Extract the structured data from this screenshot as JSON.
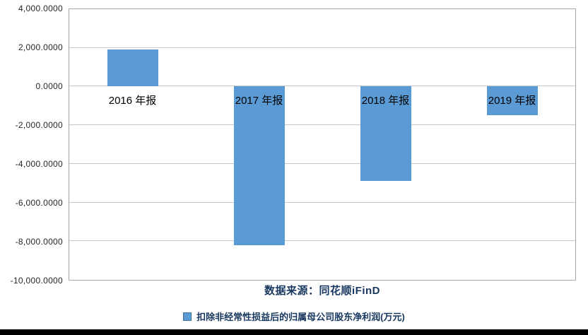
{
  "chart_data": {
    "type": "bar",
    "title": "",
    "categories": [
      "2016 年报",
      "2017 年报",
      "2018 年报",
      "2019 年报"
    ],
    "series": [
      {
        "name": "扣除非经常性损益后的归属母公司股东净利润(万元)",
        "values": [
          1900,
          -8200,
          -4900,
          -1500
        ]
      }
    ],
    "xlabel": "",
    "ylabel": "",
    "ylim": [
      -10000,
      4000
    ],
    "yticks": [
      4000,
      2000,
      0,
      -2000,
      -4000,
      -6000,
      -8000,
      -10000
    ],
    "ytick_labels": [
      "4,000.0000",
      "2,000.0000",
      "0.0000",
      "-2,000.0000",
      "-4,000.0000",
      "-6,000.0000",
      "-8,000.0000",
      "-10,000.0000"
    ],
    "grid": true,
    "legend_position": "bottom",
    "bar_color": "#5B9BD5"
  },
  "source": {
    "label": "数据来源：同花顺iFinD"
  },
  "legend": {
    "label": "扣除非经常性损益后的归属母公司股东净利润(万元)",
    "marker_icon": "square-icon",
    "marker_color": "#5B9BD5"
  },
  "colors": {
    "bar": "#5B9BD5",
    "gridline": "#c6c6c6",
    "frame": "#a6a6a6",
    "navy_text": "#17375E",
    "axis_text": "#262626",
    "bottom_strip": "#000000"
  }
}
